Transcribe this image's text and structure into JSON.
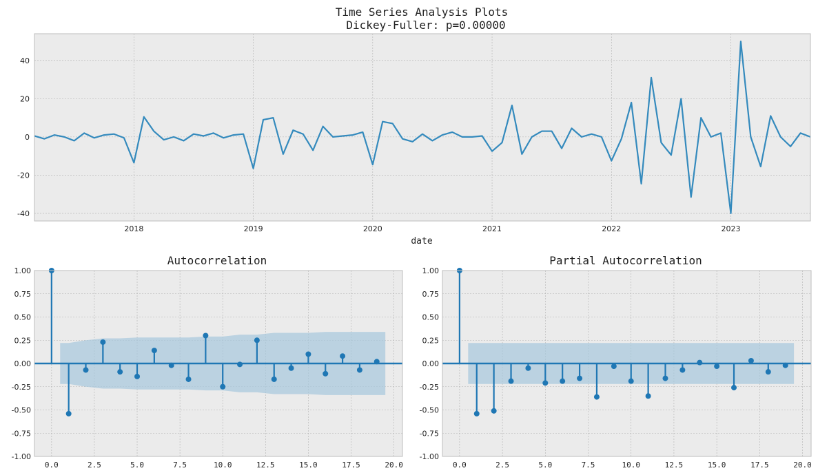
{
  "figure": {
    "title_line1": "Time Series Analysis Plots",
    "title_line2": "Dickey-Fuller: p=0.00000"
  },
  "colors": {
    "plot_bg": "#ebebeb",
    "grid": "#b0b0b0",
    "line": "#348abd",
    "stem": "#1f77b4",
    "conf_band": "#a6c8dd"
  },
  "chart_data": [
    {
      "type": "line",
      "name": "time-series",
      "title": "",
      "xlabel": "date",
      "ylabel": "",
      "xlim": [
        "2017-03",
        "2023-09"
      ],
      "ylim": [
        -44,
        54
      ],
      "yticks": [
        -40,
        -20,
        0,
        20,
        40
      ],
      "xticks": [
        "2018",
        "2019",
        "2020",
        "2021",
        "2022",
        "2023"
      ],
      "grid": true,
      "x": [
        "2017-03",
        "2017-04",
        "2017-05",
        "2017-06",
        "2017-07",
        "2017-08",
        "2017-09",
        "2017-10",
        "2017-11",
        "2017-12",
        "2018-01",
        "2018-02",
        "2018-03",
        "2018-04",
        "2018-05",
        "2018-06",
        "2018-07",
        "2018-08",
        "2018-09",
        "2018-10",
        "2018-11",
        "2018-12",
        "2019-01",
        "2019-02",
        "2019-03",
        "2019-04",
        "2019-05",
        "2019-06",
        "2019-07",
        "2019-08",
        "2019-09",
        "2019-10",
        "2019-11",
        "2019-12",
        "2020-01",
        "2020-02",
        "2020-03",
        "2020-04",
        "2020-05",
        "2020-06",
        "2020-07",
        "2020-08",
        "2020-09",
        "2020-10",
        "2020-11",
        "2020-12",
        "2021-01",
        "2021-02",
        "2021-03",
        "2021-04",
        "2021-05",
        "2021-06",
        "2021-07",
        "2021-08",
        "2021-09",
        "2021-10",
        "2021-11",
        "2021-12",
        "2022-01",
        "2022-02",
        "2022-03",
        "2022-04",
        "2022-05",
        "2022-06",
        "2022-07",
        "2022-08",
        "2022-09",
        "2022-10",
        "2022-11",
        "2022-12",
        "2023-01",
        "2023-02",
        "2023-03",
        "2023-04",
        "2023-05",
        "2023-06",
        "2023-07",
        "2023-08",
        "2023-09"
      ],
      "values": [
        0.5,
        -1,
        1,
        0,
        -2,
        2,
        -0.5,
        1,
        1.5,
        -0.5,
        -13.5,
        10.5,
        3,
        -1.5,
        0,
        -2,
        1.5,
        0.5,
        2,
        -0.5,
        1,
        1.5,
        -16.5,
        9,
        10,
        -9,
        3.5,
        1.5,
        -7,
        5.5,
        0,
        0.5,
        1,
        2.5,
        -14.5,
        8,
        7,
        -1,
        -2.5,
        1.5,
        -2,
        1,
        2.5,
        0,
        0,
        0.5,
        -7.5,
        -3,
        16.5,
        -9,
        0,
        3,
        3,
        -6,
        4.5,
        0,
        1.5,
        0,
        -12.5,
        -1,
        18,
        -24.5,
        31,
        -3,
        -9.5,
        20,
        -31.5,
        10,
        0,
        2,
        -40,
        50,
        0,
        -15.5,
        11,
        0,
        -5,
        2,
        0
      ]
    },
    {
      "type": "stem",
      "name": "acf",
      "title": "Autocorrelation",
      "xlabel": "",
      "ylabel": "",
      "xlim": [
        -1,
        20.5
      ],
      "ylim": [
        -1,
        1
      ],
      "xticks": [
        "0.0",
        "2.5",
        "5.0",
        "7.5",
        "10.0",
        "12.5",
        "15.0",
        "17.5",
        "20.0"
      ],
      "yticks": [
        "-1.00",
        "-0.75",
        "-0.50",
        "-0.25",
        "0.00",
        "0.25",
        "0.50",
        "0.75",
        "1.00"
      ],
      "grid": true,
      "lags": [
        0,
        1,
        2,
        3,
        4,
        5,
        6,
        7,
        8,
        9,
        10,
        11,
        12,
        13,
        14,
        15,
        16,
        17,
        18,
        19
      ],
      "values": [
        1.0,
        -0.54,
        -0.07,
        0.23,
        -0.09,
        -0.14,
        0.14,
        -0.02,
        -0.17,
        0.3,
        -0.25,
        -0.01,
        0.25,
        -0.17,
        -0.05,
        0.1,
        -0.11,
        0.08,
        -0.07,
        0.02
      ],
      "conf_upper": [
        0.22,
        0.22,
        0.25,
        0.27,
        0.27,
        0.28,
        0.28,
        0.28,
        0.28,
        0.29,
        0.29,
        0.31,
        0.31,
        0.33,
        0.33,
        0.33,
        0.34,
        0.34,
        0.34,
        0.34,
        0.34
      ],
      "conf_x": [
        0.5,
        1,
        2,
        3,
        4,
        5,
        6,
        7,
        8,
        9,
        10,
        11,
        12,
        13,
        14,
        15,
        16,
        17,
        18,
        19,
        19.5
      ]
    },
    {
      "type": "stem",
      "name": "pacf",
      "title": "Partial Autocorrelation",
      "xlabel": "",
      "ylabel": "",
      "xlim": [
        -1,
        20.5
      ],
      "ylim": [
        -1,
        1
      ],
      "xticks": [
        "0.0",
        "2.5",
        "5.0",
        "7.5",
        "10.0",
        "12.5",
        "15.0",
        "17.5",
        "20.0"
      ],
      "yticks": [
        "-1.00",
        "-0.75",
        "-0.50",
        "-0.25",
        "0.00",
        "0.25",
        "0.50",
        "0.75",
        "1.00"
      ],
      "grid": true,
      "lags": [
        0,
        1,
        2,
        3,
        4,
        5,
        6,
        7,
        8,
        9,
        10,
        11,
        12,
        13,
        14,
        15,
        16,
        17,
        18,
        19
      ],
      "values": [
        1.0,
        -0.54,
        -0.51,
        -0.19,
        -0.05,
        -0.21,
        -0.19,
        -0.16,
        -0.36,
        -0.03,
        -0.19,
        -0.35,
        -0.16,
        -0.07,
        0.01,
        -0.03,
        -0.26,
        0.03,
        -0.09,
        -0.02
      ],
      "conf_upper": [
        0.22,
        0.22
      ],
      "conf_x": [
        0.5,
        19.5
      ]
    }
  ]
}
